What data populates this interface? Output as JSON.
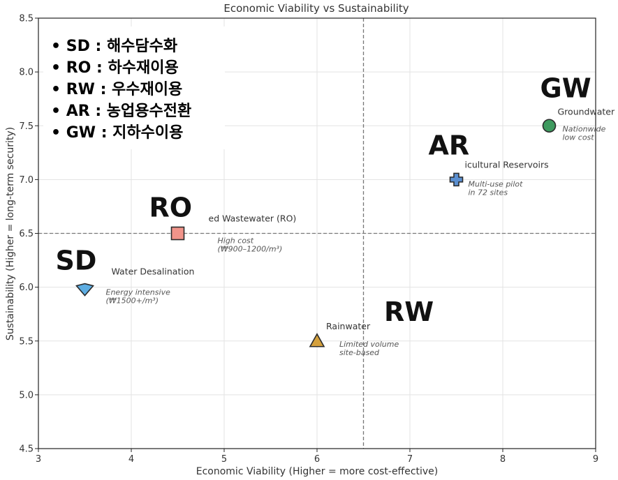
{
  "chart_data": {
    "type": "scatter",
    "title": "Economic Viability vs Sustainability",
    "xlabel": "Economic Viability (Higher = more cost-effective)",
    "ylabel": "Sustainability (Higher = long-term security)",
    "xlim": [
      3,
      9
    ],
    "ylim": [
      4.5,
      8.5
    ],
    "x_ticks": [
      "3",
      "4",
      "5",
      "6",
      "7",
      "8",
      "9"
    ],
    "y_ticks": [
      "4.5",
      "5.0",
      "5.5",
      "6.0",
      "6.5",
      "7.0",
      "7.5",
      "8.0",
      "8.5"
    ],
    "grid": true,
    "ref_lines": {
      "x": 6.5,
      "y": 6.5
    },
    "points": [
      {
        "id": "sd",
        "x": 3.5,
        "y": 6.0,
        "marker": "diamond",
        "color": "#5dade2",
        "label": "Water Desalination",
        "note": [
          "Energy intensive",
          "(₩1500+/m³)"
        ],
        "tag": "SD"
      },
      {
        "id": "ro",
        "x": 4.5,
        "y": 6.5,
        "marker": "square",
        "color": "#f1948a",
        "label": "ed Wastewater (RO)",
        "note": [
          "High cost",
          "(₩900–1200/m³)"
        ],
        "tag": "RO"
      },
      {
        "id": "rw",
        "x": 6.0,
        "y": 5.5,
        "marker": "triangle",
        "color": "#d4a03c",
        "label": "Rainwater",
        "note": [
          "Limited volume",
          "site-based"
        ],
        "tag": "RW"
      },
      {
        "id": "ar",
        "x": 7.5,
        "y": 7.0,
        "marker": "plus",
        "color": "#5b8fd0",
        "label": "icultural Reservoirs",
        "note": [
          "Multi-use pilot",
          "in 72 sites"
        ],
        "tag": "AR"
      },
      {
        "id": "gw",
        "x": 8.5,
        "y": 7.5,
        "marker": "circle",
        "color": "#3e9a5f",
        "label": "Groundwater",
        "note": [
          "Nationwide",
          "low cost"
        ],
        "tag": "GW"
      }
    ],
    "legend_box": [
      "• SD : 해수담수화",
      "• RO : 하수재이용",
      "• RW : 우수재이용",
      "• AR : 농업용수전환",
      "• GW : 지하수이용"
    ]
  }
}
